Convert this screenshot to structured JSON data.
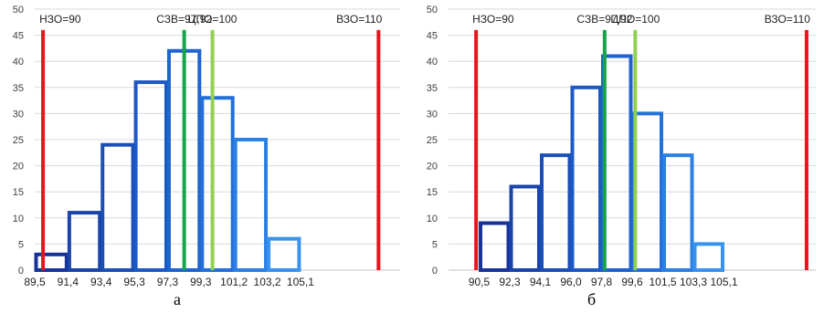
{
  "captions": [
    "а",
    "б"
  ],
  "chart_data": [
    {
      "type": "bar",
      "panel": "а",
      "ylim": [
        0,
        50
      ],
      "yticks": [
        0,
        5,
        10,
        15,
        20,
        25,
        30,
        35,
        40,
        45,
        50
      ],
      "x_tick_labels": [
        "89,5",
        "91,4",
        "93,4",
        "95,3",
        "97,3",
        "99,3",
        "101,2",
        "103,2",
        "105,1"
      ],
      "xlim": [
        1,
        12
      ],
      "bins": [
        {
          "from": 1,
          "to": 2,
          "value": 3,
          "color": "#17339a"
        },
        {
          "from": 2,
          "to": 3,
          "value": 11,
          "color": "#1a45a8"
        },
        {
          "from": 3,
          "to": 4,
          "value": 24,
          "color": "#1b4fb6"
        },
        {
          "from": 4,
          "to": 5,
          "value": 36,
          "color": "#1d59c4"
        },
        {
          "from": 5,
          "to": 6,
          "value": 42,
          "color": "#1e63d0"
        },
        {
          "from": 6,
          "to": 7,
          "value": 33,
          "color": "#2370da"
        },
        {
          "from": 7,
          "to": 8,
          "value": 25,
          "color": "#2b80e4"
        },
        {
          "from": 8,
          "to": 9,
          "value": 6,
          "color": "#3793ee"
        }
      ],
      "reference_lines": [
        {
          "label": "НЗО=90",
          "x": 1.25,
          "color": "#e8141c"
        },
        {
          "label": "СЗВ=97,92",
          "x": 5.5,
          "color": "#16a34a"
        },
        {
          "label": "ЦПО=100",
          "x": 6.35,
          "color": "#8fd14f"
        },
        {
          "label": "ВЗО=110",
          "x": 11.35,
          "color": "#e8141c"
        }
      ]
    },
    {
      "type": "bar",
      "panel": "б",
      "ylim": [
        0,
        50
      ],
      "yticks": [
        0,
        5,
        10,
        15,
        20,
        25,
        30,
        35,
        40,
        45,
        50
      ],
      "x_tick_labels": [
        "90,5",
        "92,3",
        "94,1",
        "96,0",
        "97,8",
        "99,6",
        "101,5",
        "103,3",
        "105,1"
      ],
      "xlim": [
        1,
        13
      ],
      "bins": [
        {
          "from": 2,
          "to": 3,
          "value": 9,
          "color": "#17339a"
        },
        {
          "from": 3,
          "to": 4,
          "value": 16,
          "color": "#1a45a8"
        },
        {
          "from": 4,
          "to": 5,
          "value": 22,
          "color": "#1b4fb6"
        },
        {
          "from": 5,
          "to": 6,
          "value": 35,
          "color": "#1d59c4"
        },
        {
          "from": 6,
          "to": 7,
          "value": 41,
          "color": "#1e63d0"
        },
        {
          "from": 7,
          "to": 8,
          "value": 30,
          "color": "#2370da"
        },
        {
          "from": 8,
          "to": 9,
          "value": 22,
          "color": "#2b80e4"
        },
        {
          "from": 9,
          "to": 10,
          "value": 5,
          "color": "#3793ee"
        }
      ],
      "reference_lines": [
        {
          "label": "НЗО=90",
          "x": 1.9,
          "color": "#e8141c"
        },
        {
          "label": "СЗВ=97,92",
          "x": 6.1,
          "color": "#16a34a"
        },
        {
          "label": "ЦПО=100",
          "x": 7.1,
          "color": "#8fd14f"
        },
        {
          "label": "ВЗО=110",
          "x": 12.7,
          "color": "#e8141c"
        }
      ]
    }
  ]
}
